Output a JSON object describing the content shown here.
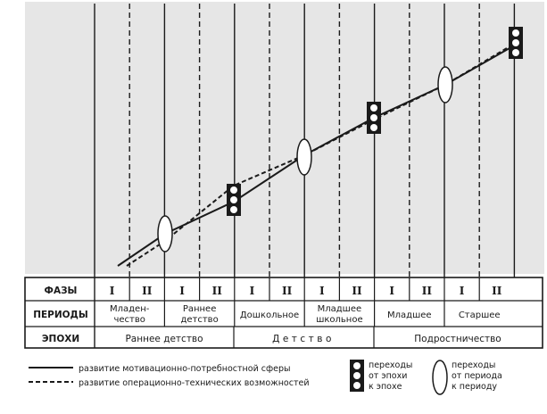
{
  "table": {
    "row_labels": {
      "phases": "ФАЗЫ",
      "periods": "ПЕРИОДЫ",
      "epochs": "ЭПОХИ"
    },
    "phases": [
      "I",
      "II",
      "I",
      "II",
      "I",
      "II",
      "I",
      "II",
      "I",
      "II",
      "I",
      "II"
    ],
    "periods": [
      {
        "lines": [
          "Младен-",
          "чество"
        ]
      },
      {
        "lines": [
          "Раннее",
          "детство"
        ]
      },
      {
        "lines": [
          "Дошкольное"
        ]
      },
      {
        "lines": [
          "Младшее",
          "школьное"
        ]
      },
      {
        "lines": [
          "Младшее"
        ]
      },
      {
        "lines": [
          "Старшее"
        ]
      }
    ],
    "epochs": [
      "Раннее детство",
      "Детство",
      "Подростничество"
    ]
  },
  "legend": {
    "motivational": "развитие мотивационно-потребностной сферы",
    "operational": "развитие операционно-технических возможностей",
    "epoch_transition": [
      "переходы",
      "от эпохи",
      "к эпохе"
    ],
    "period_transition": [
      "переходы",
      "от периода",
      "к периоду"
    ]
  },
  "colors": {
    "ink": "#1a1a1a",
    "paper": "#ffffff",
    "shade": "#d9d9d9"
  },
  "icons": {
    "epoch_transition": "three-circle-box-icon",
    "period_transition": "ellipse-icon"
  }
}
